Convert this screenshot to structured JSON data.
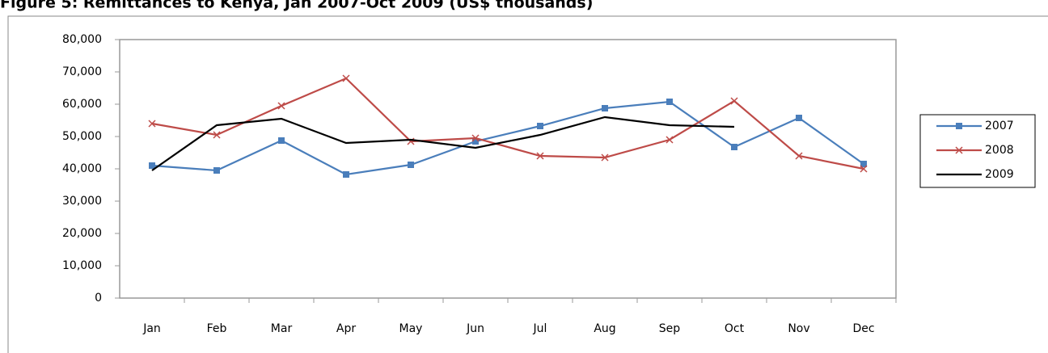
{
  "chart_data": {
    "type": "line",
    "title": "Figure 5: Remittances to Kenya, Jan 2007-Oct 2009 (US$ thousands)",
    "categories": [
      "Jan",
      "Feb",
      "Mar",
      "Apr",
      "May",
      "Jun",
      "Jul",
      "Aug",
      "Sep",
      "Oct",
      "Nov",
      "Dec"
    ],
    "series": [
      {
        "name": "2007",
        "color": "#4a7ebb",
        "marker": "square",
        "values": [
          41000,
          39500,
          48750,
          38250,
          41250,
          48500,
          53250,
          58750,
          60750,
          46750,
          55750,
          41500
        ]
      },
      {
        "name": "2008",
        "color": "#be4b48",
        "marker": "x",
        "values": [
          54000,
          50500,
          59500,
          68000,
          48500,
          49500,
          44000,
          43500,
          49000,
          61000,
          44000,
          40000
        ]
      },
      {
        "name": "2009",
        "color": "#000000",
        "marker": "none",
        "values": [
          39500,
          53500,
          55500,
          48000,
          49000,
          46500,
          50500,
          56000,
          53500,
          53000,
          null,
          null
        ]
      }
    ],
    "ylim": [
      0,
      80000
    ],
    "yticks": [
      {
        "value": 0,
        "label": "0"
      },
      {
        "value": 10000,
        "label": "10,000"
      },
      {
        "value": 20000,
        "label": "20,000"
      },
      {
        "value": 30000,
        "label": "30,000"
      },
      {
        "value": 40000,
        "label": "40,000"
      },
      {
        "value": 50000,
        "label": "50,000"
      },
      {
        "value": 60000,
        "label": "60,000"
      },
      {
        "value": 70000,
        "label": "70,000"
      },
      {
        "value": 80000,
        "label": "80,000"
      }
    ],
    "legend": "right"
  }
}
